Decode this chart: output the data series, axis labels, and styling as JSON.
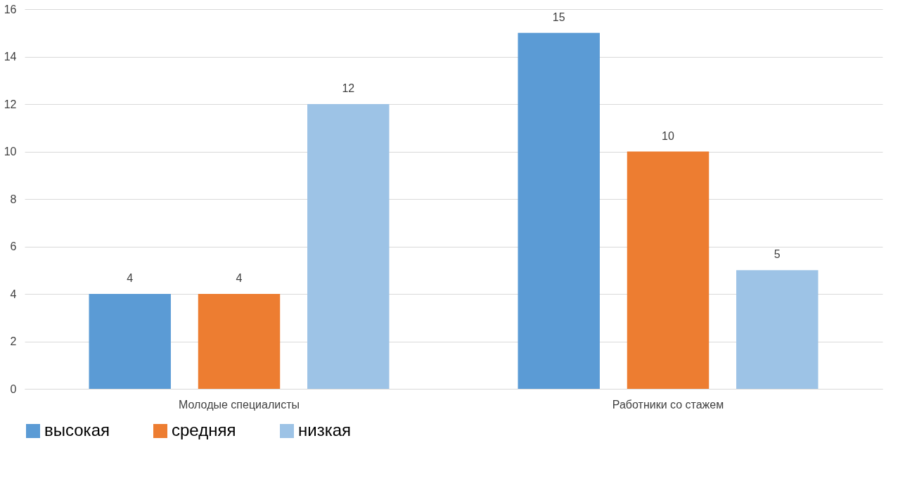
{
  "chart_data": {
    "type": "bar",
    "categories": [
      "Молодые специалисты",
      "Работники со стажем"
    ],
    "series": [
      {
        "name": "высокая",
        "color": "#5b9bd5",
        "values": [
          4,
          15
        ]
      },
      {
        "name": "средняя",
        "color": "#ed7d31",
        "values": [
          4,
          10
        ]
      },
      {
        "name": "низкая",
        "color": "#9dc3e6",
        "values": [
          12,
          5
        ]
      }
    ],
    "ylim": [
      0,
      16
    ],
    "yticks": [
      0,
      2,
      4,
      6,
      8,
      10,
      12,
      14,
      16
    ],
    "grid": "y",
    "legend": "bottom",
    "data_labels": true
  }
}
